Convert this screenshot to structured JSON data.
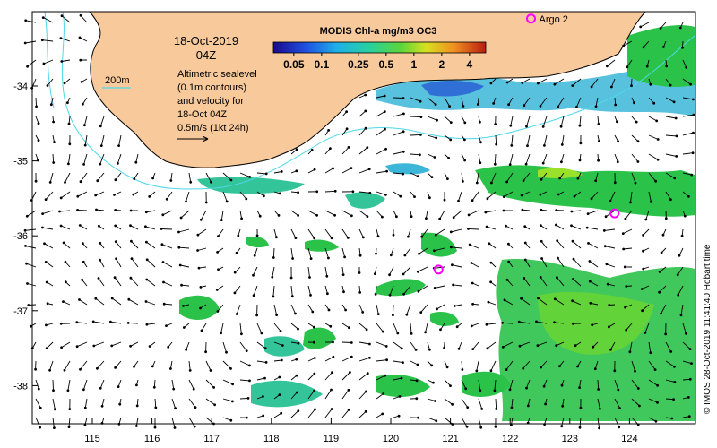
{
  "map": {
    "date": "18-Oct-2019",
    "time": "04Z",
    "depth_contour_label": "200m",
    "description_lines": [
      "Altimetric sealevel",
      "(0.1m contours)",
      "and velocity for",
      "18-Oct 04Z",
      "0.5m/s (1kt 24h)"
    ],
    "colorbar": {
      "title": "MODIS Chl-a mg/m3 OC3",
      "tick_labels": [
        "0.05",
        "0.1",
        "0.25",
        "0.5",
        "1",
        "2",
        "4"
      ]
    },
    "x_tick_labels": [
      "115",
      "116",
      "117",
      "118",
      "119",
      "120",
      "121",
      "122",
      "123",
      "124"
    ],
    "y_tick_labels": [
      "-34",
      "-35",
      "-36",
      "-37",
      "-38"
    ],
    "floats": [
      {
        "label": "Argo 2",
        "lon": 122.35,
        "lat": -33.1
      },
      {
        "label": "",
        "lon": 123.75,
        "lat": -35.7
      },
      {
        "label": "",
        "lon": 120.8,
        "lat": -36.45
      }
    ],
    "credit": "© IMOS 28-Oct-2019 11:41:40 Hobart time",
    "colors": {
      "land": "#f8c99b",
      "ocean": "#ffffff",
      "contour": "#4fd8e8",
      "float_marker": "#ff00ff",
      "chl_green": "#2bc24a",
      "chl_teal": "#34c49a",
      "chl_blue": "#2f6fd6"
    }
  }
}
